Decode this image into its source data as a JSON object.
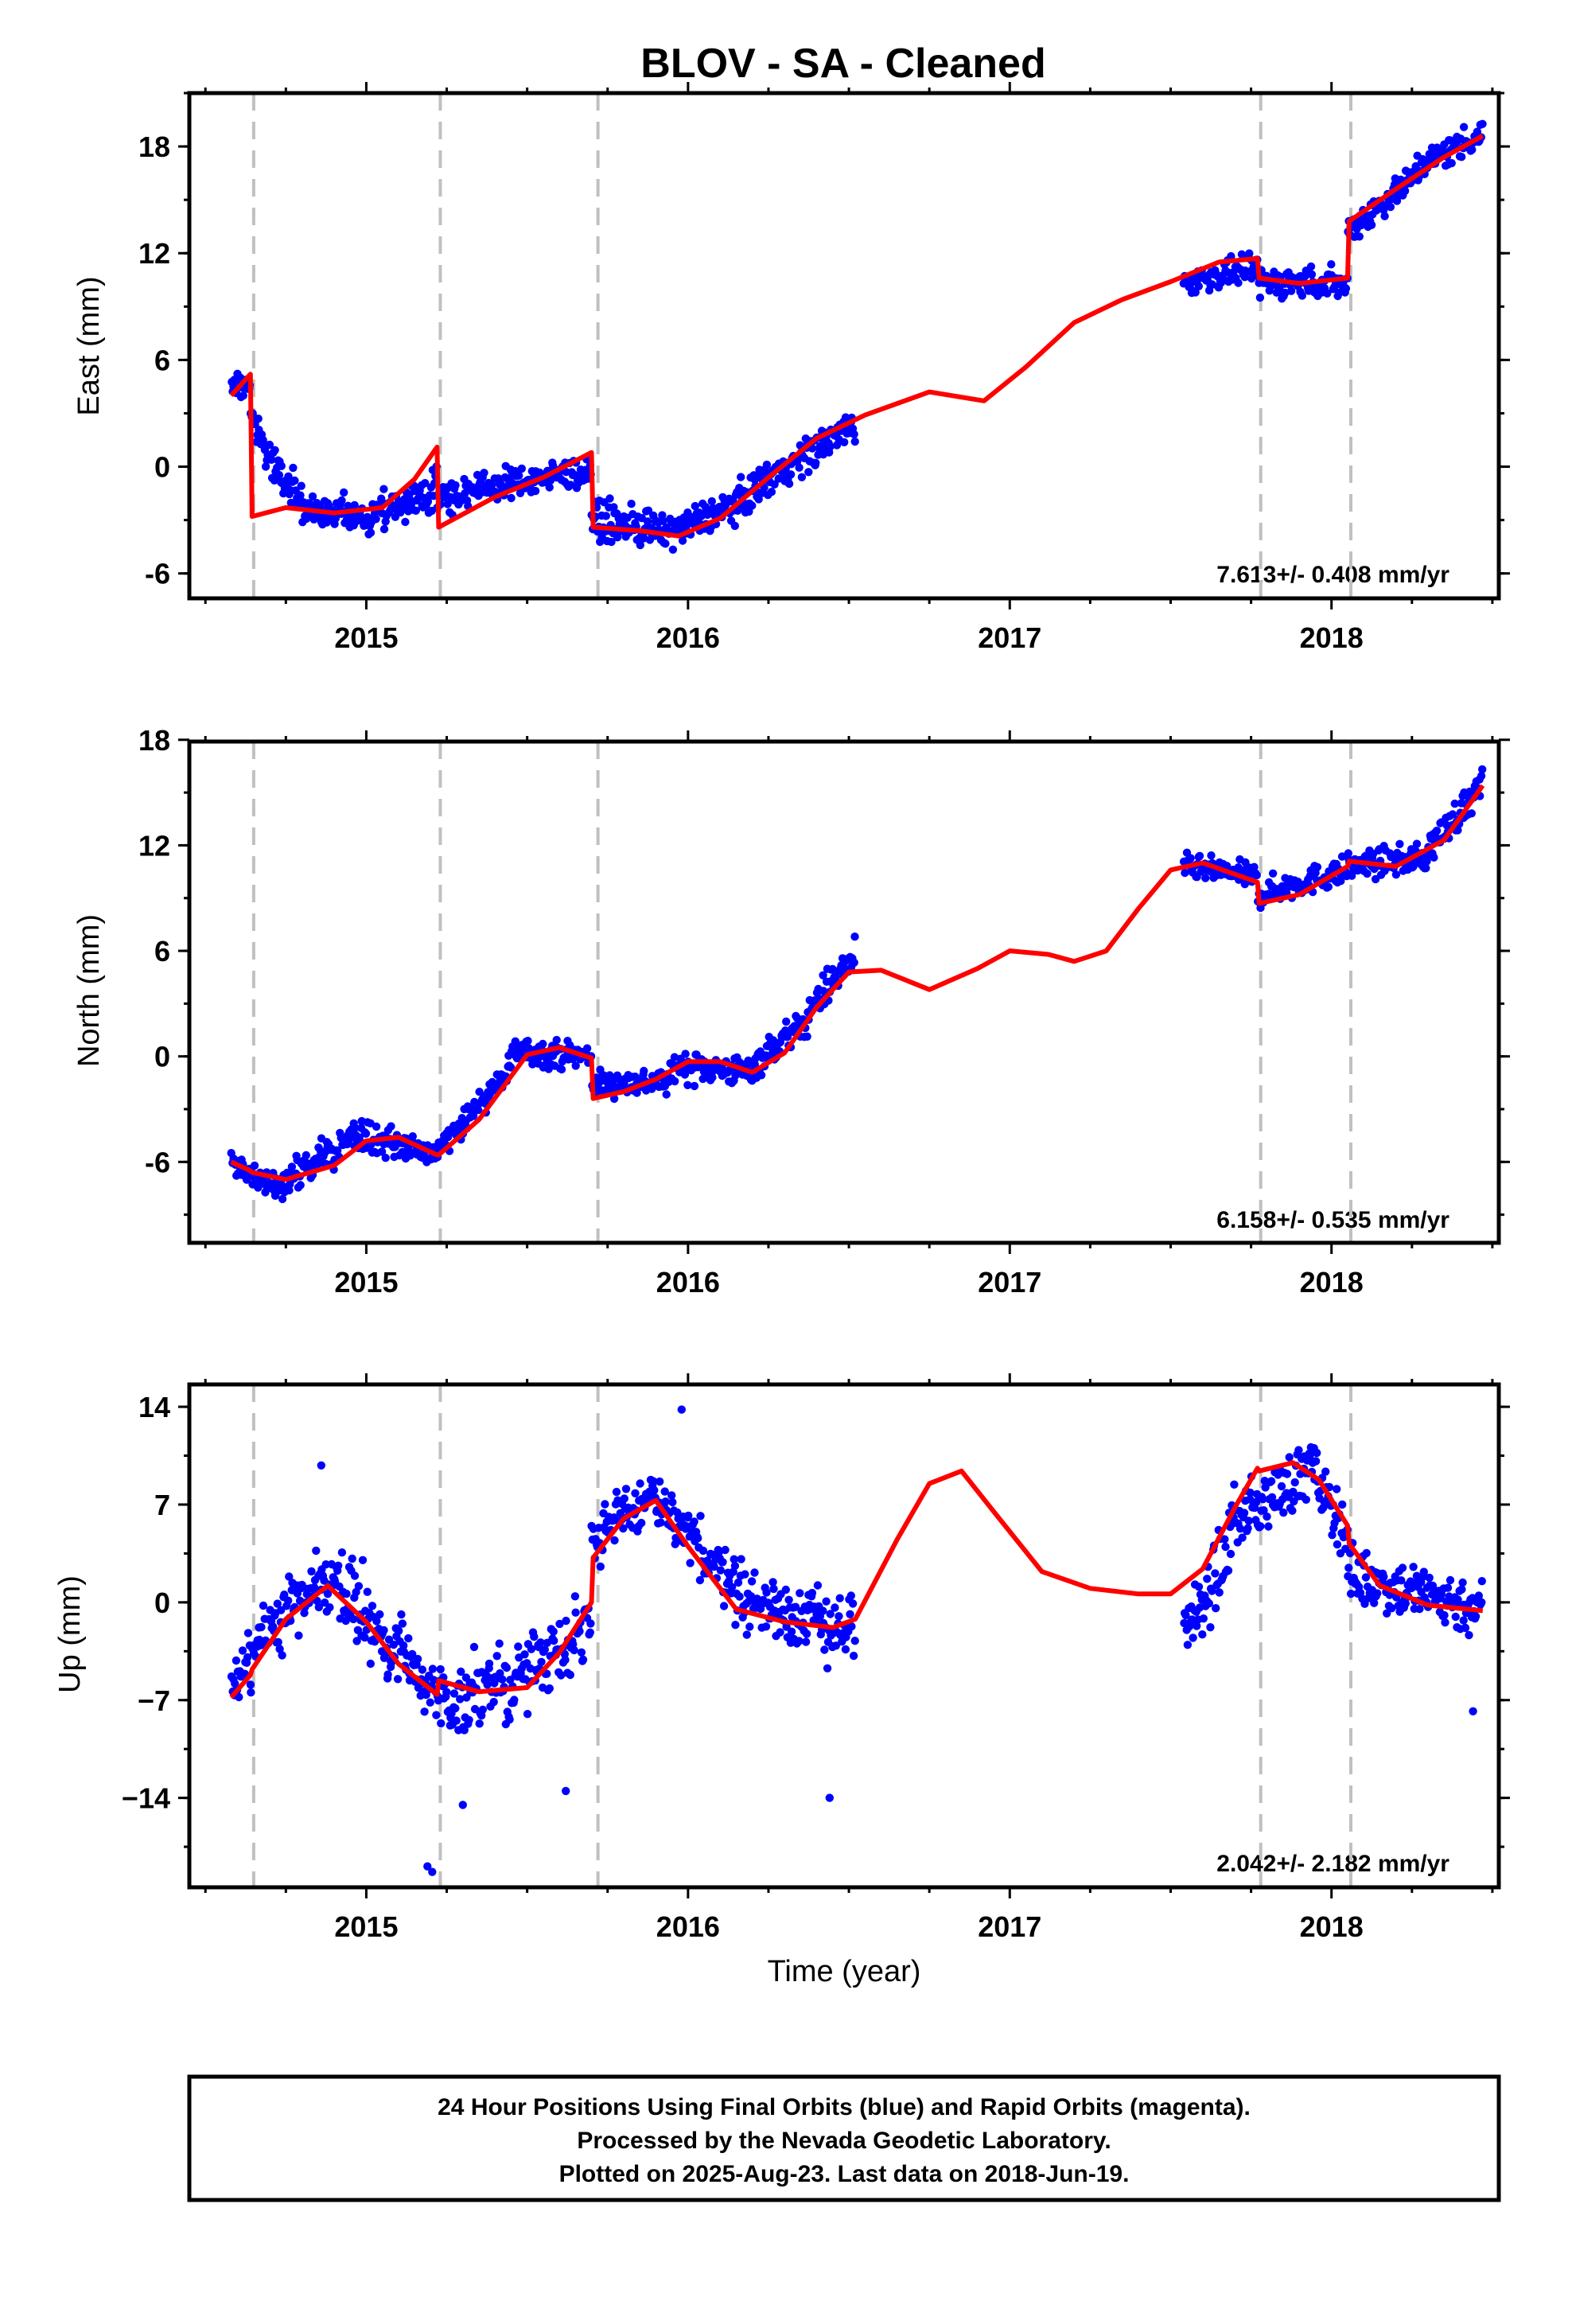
{
  "title": "BLOV  - SA - Cleaned",
  "chart_data": [
    {
      "type": "scatter",
      "component": "east",
      "ylabel": "East (mm)",
      "xlabel": "",
      "xlim": [
        2014.45,
        2018.52
      ],
      "ylim": [
        -7.4,
        21.0
      ],
      "yticks": [
        -6,
        0,
        6,
        12,
        18
      ],
      "ytick_labels": [
        "-6",
        "0",
        "6",
        "12",
        "18"
      ],
      "xticks": [
        2015,
        2016,
        2017,
        2018
      ],
      "xtick_labels": [
        "2015",
        "2016",
        "2017",
        "2018"
      ],
      "rate_label": "7.613+/- 0.408 mm/yr",
      "grid": false,
      "series": [
        {
          "color": "#0000ff",
          "segments": [
            {
              "x": [
                2014.58,
                2014.64
              ],
              "y": [
                4.6,
                4.6
              ],
              "jitter": 0.8
            },
            {
              "x": [
                2014.64,
                2014.68
              ],
              "y": [
                3.4,
                1.2
              ],
              "jitter": 0.9
            },
            {
              "x": [
                2014.68,
                2014.8
              ],
              "y": [
                1.0,
                -2.0
              ],
              "jitter": 1.3
            },
            {
              "x": [
                2014.8,
                2015.0
              ],
              "y": [
                -2.4,
                -2.9
              ],
              "jitter": 1.3
            },
            {
              "x": [
                2015.0,
                2015.22
              ],
              "y": [
                -2.9,
                -1.2
              ],
              "jitter": 1.3
            },
            {
              "x": [
                2015.22,
                2015.45
              ],
              "y": [
                -1.8,
                -0.9
              ],
              "jitter": 1.1
            },
            {
              "x": [
                2015.45,
                2015.7
              ],
              "y": [
                -0.9,
                -0.2
              ],
              "jitter": 1.1
            },
            {
              "x": [
                2015.7,
                2015.95
              ],
              "y": [
                -3.0,
                -3.7
              ],
              "jitter": 1.3
            },
            {
              "x": [
                2015.95,
                2016.2
              ],
              "y": [
                -3.7,
                -1.6
              ],
              "jitter": 1.2
            },
            {
              "x": [
                2016.2,
                2016.52
              ],
              "y": [
                -1.2,
                2.4
              ],
              "jitter": 1.3
            },
            {
              "x": [
                2017.54,
                2017.77
              ],
              "y": [
                10.3,
                11.2
              ],
              "jitter": 0.9
            },
            {
              "x": [
                2017.77,
                2018.05
              ],
              "y": [
                10.4,
                10.3
              ],
              "jitter": 1.1
            },
            {
              "x": [
                2018.05,
                2018.25
              ],
              "y": [
                13.2,
                16.2
              ],
              "jitter": 1.1
            },
            {
              "x": [
                2018.25,
                2018.47
              ],
              "y": [
                16.6,
                18.8
              ],
              "jitter": 1.1
            }
          ]
        },
        {
          "color": "#ff0000",
          "model_x": [
            2014.58,
            2014.64,
            2014.645,
            2014.75,
            2014.9,
            2015.05,
            2015.15,
            2015.22,
            2015.225,
            2015.4,
            2015.55,
            2015.7,
            2015.705,
            2015.85,
            2015.97,
            2016.1,
            2016.25,
            2016.4,
            2016.55,
            2016.75,
            2016.92,
            2017.05,
            2017.2,
            2017.35,
            2017.5,
            2017.65,
            2017.77,
            2017.775,
            2017.9,
            2018.05,
            2018.055,
            2018.2,
            2018.35,
            2018.47
          ],
          "model_y": [
            4.0,
            5.2,
            -2.8,
            -2.3,
            -2.6,
            -2.3,
            -0.7,
            1.1,
            -3.4,
            -1.7,
            -0.6,
            0.8,
            -3.4,
            -3.6,
            -3.9,
            -2.9,
            -0.6,
            1.6,
            2.9,
            4.2,
            3.7,
            5.6,
            8.1,
            9.4,
            10.4,
            11.5,
            11.7,
            10.6,
            10.3,
            10.6,
            13.8,
            15.6,
            17.4,
            18.6
          ]
        }
      ]
    },
    {
      "type": "scatter",
      "component": "north",
      "ylabel": "North (mm)",
      "xlabel": "",
      "xlim": [
        2014.45,
        2018.52
      ],
      "ylim": [
        -10.6,
        17.9
      ],
      "yticks": [
        -6,
        0,
        6,
        12,
        18
      ],
      "ytick_labels": [
        "-6",
        "0",
        "6",
        "12",
        "18"
      ],
      "xticks": [
        2015,
        2016,
        2017,
        2018
      ],
      "xtick_labels": [
        "2015",
        "2016",
        "2017",
        "2018"
      ],
      "rate_label": "6.158+/- 0.535 mm/yr",
      "grid": false,
      "series": [
        {
          "color": "#0000ff",
          "segments": [
            {
              "x": [
                2014.58,
                2014.75
              ],
              "y": [
                -6.2,
                -7.6
              ],
              "jitter": 1.1
            },
            {
              "x": [
                2014.75,
                2014.95
              ],
              "y": [
                -7.2,
                -4.6
              ],
              "jitter": 1.2
            },
            {
              "x": [
                2014.95,
                2015.22
              ],
              "y": [
                -4.4,
                -5.6
              ],
              "jitter": 1.1
            },
            {
              "x": [
                2015.22,
                2015.45
              ],
              "y": [
                -5.2,
                -0.8
              ],
              "jitter": 1.1
            },
            {
              "x": [
                2015.45,
                2015.7
              ],
              "y": [
                0.3,
                0.0
              ],
              "jitter": 1.0
            },
            {
              "x": [
                2015.7,
                2015.95
              ],
              "y": [
                -1.6,
                -1.4
              ],
              "jitter": 1.0
            },
            {
              "x": [
                2015.95,
                2016.2
              ],
              "y": [
                -0.5,
                -0.9
              ],
              "jitter": 1.1
            },
            {
              "x": [
                2016.2,
                2016.38
              ],
              "y": [
                -0.5,
                2.2
              ],
              "jitter": 1.2
            },
            {
              "x": [
                2016.38,
                2016.52
              ],
              "y": [
                2.8,
                5.8
              ],
              "jitter": 1.3
            },
            {
              "x": [
                2017.54,
                2017.77
              ],
              "y": [
                10.8,
                10.2
              ],
              "jitter": 0.9
            },
            {
              "x": [
                2017.77,
                2018.05
              ],
              "y": [
                9.2,
                10.6
              ],
              "jitter": 1.0
            },
            {
              "x": [
                2018.05,
                2018.3
              ],
              "y": [
                10.8,
                11.3
              ],
              "jitter": 1.0
            },
            {
              "x": [
                2018.3,
                2018.47
              ],
              "y": [
                11.8,
                15.4
              ],
              "jitter": 1.2
            }
          ]
        },
        {
          "color": "#ff0000",
          "model_x": [
            2014.58,
            2014.64,
            2014.645,
            2014.75,
            2014.9,
            2015.0,
            2015.1,
            2015.22,
            2015.225,
            2015.35,
            2015.5,
            2015.6,
            2015.7,
            2015.705,
            2015.8,
            2015.9,
            2016.0,
            2016.1,
            2016.2,
            2016.3,
            2016.4,
            2016.5,
            2016.6,
            2016.75,
            2016.9,
            2017.0,
            2017.12,
            2017.2,
            2017.3,
            2017.4,
            2017.5,
            2017.6,
            2017.77,
            2017.775,
            2017.9,
            2018.05,
            2018.055,
            2018.2,
            2018.35,
            2018.47
          ],
          "model_y": [
            -6.0,
            -6.5,
            -6.6,
            -7.0,
            -6.2,
            -4.8,
            -4.6,
            -5.6,
            -5.6,
            -3.6,
            0.1,
            0.5,
            -0.1,
            -2.4,
            -2.0,
            -1.3,
            -0.3,
            -0.3,
            -0.9,
            0.2,
            2.8,
            4.8,
            4.9,
            3.8,
            5.0,
            6.0,
            5.8,
            5.4,
            6.0,
            8.4,
            10.6,
            11.0,
            9.9,
            8.7,
            9.2,
            10.8,
            11.1,
            10.8,
            12.3,
            15.4
          ]
        }
      ]
    },
    {
      "type": "scatter",
      "component": "up",
      "ylabel": "Up (mm)",
      "xlabel": "Time (year)",
      "xlim": [
        2014.45,
        2018.52
      ],
      "ylim": [
        -20.4,
        15.6
      ],
      "yticks": [
        -14,
        -7,
        0,
        7,
        14
      ],
      "ytick_labels": [
        "−14",
        "−7",
        "0",
        "7",
        "14"
      ],
      "xticks": [
        2015,
        2016,
        2017,
        2018
      ],
      "xtick_labels": [
        "2015",
        "2016",
        "2017",
        "2018"
      ],
      "rate_label": "2.042+/- 2.182 mm/yr",
      "grid": false,
      "series": [
        {
          "color": "#0000ff",
          "segments": [
            {
              "x": [
                2014.58,
                2014.72
              ],
              "y": [
                -6.0,
                -1.5
              ],
              "jitter": 3.0
            },
            {
              "x": [
                2014.72,
                2014.92
              ],
              "y": [
                -1.0,
                1.8
              ],
              "jitter": 3.2
            },
            {
              "x": [
                2014.92,
                2015.22
              ],
              "y": [
                1.0,
                -6.8
              ],
              "jitter": 3.4
            },
            {
              "x": [
                2015.22,
                2015.45
              ],
              "y": [
                -7.0,
                -5.8
              ],
              "jitter": 3.6
            },
            {
              "x": [
                2015.45,
                2015.7
              ],
              "y": [
                -5.6,
                -1.5
              ],
              "jitter": 3.4
            },
            {
              "x": [
                2015.7,
                2015.9
              ],
              "y": [
                4.5,
                7.8
              ],
              "jitter": 2.8
            },
            {
              "x": [
                2015.9,
                2016.15
              ],
              "y": [
                6.8,
                1.5
              ],
              "jitter": 3.0
            },
            {
              "x": [
                2016.15,
                2016.52
              ],
              "y": [
                0.5,
                -2.2
              ],
              "jitter": 3.2
            },
            {
              "x": [
                2017.54,
                2017.68
              ],
              "y": [
                -2.5,
                3.5
              ],
              "jitter": 3.2
            },
            {
              "x": [
                2017.68,
                2017.95
              ],
              "y": [
                5.5,
                9.8
              ],
              "jitter": 2.8
            },
            {
              "x": [
                2017.95,
                2018.05
              ],
              "y": [
                8.8,
                5.0
              ],
              "jitter": 2.6
            },
            {
              "x": [
                2018.05,
                2018.47
              ],
              "y": [
                2.0,
                -0.5
              ],
              "jitter": 2.7
            }
          ],
          "outliers": [
            {
              "x": 2015.19,
              "y": -18.9
            },
            {
              "x": 2015.205,
              "y": -19.3
            },
            {
              "x": 2016.44,
              "y": -14.0
            },
            {
              "x": 2015.62,
              "y": -13.5
            },
            {
              "x": 2015.3,
              "y": -14.5
            },
            {
              "x": 2014.86,
              "y": 9.8
            },
            {
              "x": 2015.98,
              "y": 13.8
            },
            {
              "x": 2018.44,
              "y": -7.8
            }
          ]
        },
        {
          "color": "#ff0000",
          "model_x": [
            2014.58,
            2014.64,
            2014.645,
            2014.75,
            2014.88,
            2015.0,
            2015.1,
            2015.22,
            2015.225,
            2015.35,
            2015.5,
            2015.6,
            2015.7,
            2015.705,
            2015.8,
            2015.9,
            2016.0,
            2016.15,
            2016.3,
            2016.45,
            2016.52,
            2016.65,
            2016.75,
            2016.85,
            2016.95,
            2017.1,
            2017.25,
            2017.4,
            2017.5,
            2017.6,
            2017.7,
            2017.77,
            2017.775,
            2017.88,
            2017.96,
            2018.05,
            2018.055,
            2018.15,
            2018.3,
            2018.47
          ],
          "model_y": [
            -6.8,
            -5.2,
            -4.8,
            -1.2,
            1.2,
            -1.4,
            -4.4,
            -6.6,
            -5.6,
            -6.4,
            -6.1,
            -3.6,
            0.0,
            3.2,
            6.0,
            7.3,
            4.0,
            -0.5,
            -1.4,
            -1.8,
            -1.2,
            4.5,
            8.5,
            9.4,
            6.5,
            2.2,
            1.0,
            0.6,
            0.6,
            2.4,
            6.8,
            9.6,
            9.4,
            10.0,
            8.8,
            5.5,
            4.2,
            1.2,
            -0.2,
            -0.6
          ]
        }
      ]
    }
  ],
  "event_lines": [
    2014.65,
    2015.23,
    2015.72,
    2017.78,
    2018.06
  ],
  "caption": {
    "line1": "24 Hour Positions Using Final Orbits (blue) and Rapid Orbits (magenta).",
    "line2": "Processed by the Nevada Geodetic Laboratory.",
    "line3": "Plotted on 2025-Aug-23. Last data on 2018-Jun-19."
  }
}
